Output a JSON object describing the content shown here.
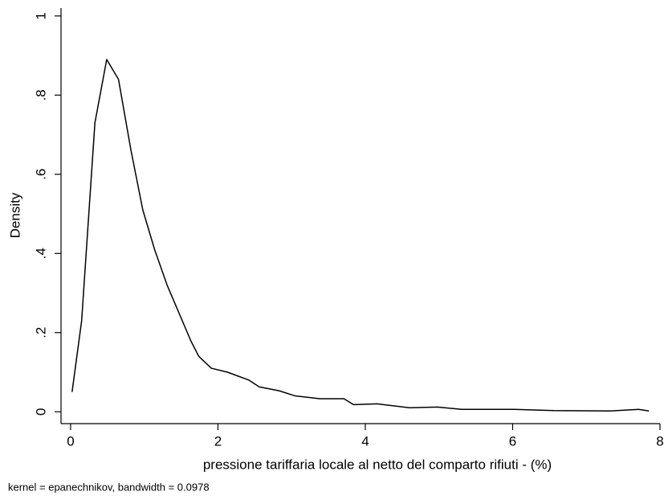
{
  "chart_data": {
    "type": "line",
    "y_label": "Density",
    "x_label": "pressione tariffaria locale al netto del comparto rifiuti - (%)",
    "note": "kernel = epanechnikov, bandwidth = 0.0978",
    "color": "#000000",
    "x": [
      0.02,
      0.15,
      0.33,
      0.49,
      0.65,
      0.82,
      0.98,
      1.14,
      1.31,
      1.47,
      1.63,
      1.74,
      1.91,
      2.13,
      2.42,
      2.56,
      2.83,
      3.05,
      3.38,
      3.71,
      3.84,
      4.16,
      4.6,
      4.98,
      5.31,
      6.02,
      6.56,
      7.32,
      7.71,
      7.85
    ],
    "values": [
      0.05,
      0.23,
      0.73,
      0.89,
      0.84,
      0.66,
      0.51,
      0.41,
      0.32,
      0.25,
      0.18,
      0.14,
      0.11,
      0.1,
      0.08,
      0.063,
      0.053,
      0.04,
      0.033,
      0.033,
      0.018,
      0.02,
      0.01,
      0.012,
      0.006,
      0.006,
      0.003,
      0.002,
      0.006,
      0.002
    ],
    "xlim": [
      -0.13,
      8
    ],
    "ylim": [
      -0.03,
      1.02
    ],
    "xticks": [
      0,
      2,
      4,
      6,
      8
    ],
    "yticks": [
      0,
      {
        "value": 0.2,
        "label": ".2"
      },
      {
        "value": 0.4,
        "label": ".4"
      },
      {
        "value": 0.6,
        "label": ".6"
      },
      {
        "value": 0.8,
        "label": ".8"
      },
      1
    ],
    "grid": false
  }
}
